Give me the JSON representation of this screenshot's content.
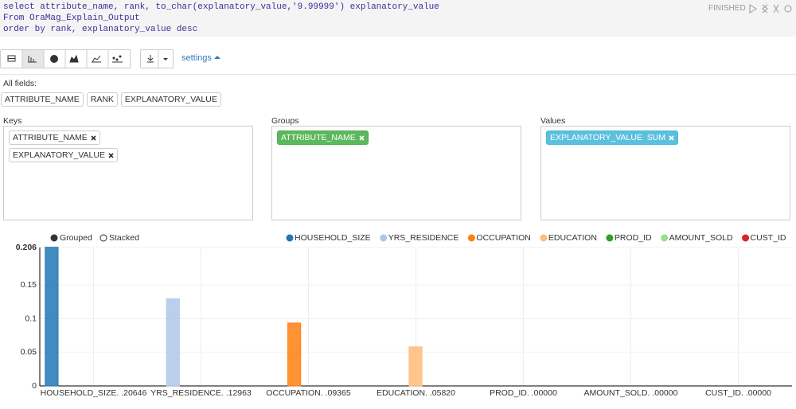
{
  "editor": {
    "lines": [
      "select attribute_name, rank, to_char(explanatory_value,'9.99999') explanatory_value",
      "From OraMag_Explain_Output",
      "order by rank, explanatory_value desc"
    ],
    "status": "FINISHED"
  },
  "toolbar": {
    "settings": "settings"
  },
  "fields": {
    "label": "All fields:",
    "items": [
      "ATTRIBUTE_NAME",
      "RANK",
      "EXPLANATORY_VALUE"
    ]
  },
  "keys": {
    "label": "Keys",
    "items": [
      "ATTRIBUTE_NAME",
      "EXPLANATORY_VALUE"
    ]
  },
  "groups": {
    "label": "Groups",
    "items": [
      "ATTRIBUTE_NAME"
    ]
  },
  "values": {
    "label": "Values",
    "items": [
      "EXPLANATORY_VALUE  SUM"
    ]
  },
  "chart_controls": {
    "grouped": "Grouped",
    "stacked": "Stacked"
  },
  "chart_data": {
    "type": "bar",
    "categories": [
      "HOUSEHOLD_SIZE. .20646",
      "YRS_RESIDENCE. .12963",
      "OCCUPATION. .09365",
      "EDUCATION. .05820",
      "PROD_ID. .00000",
      "AMOUNT_SOLD. .00000",
      "CUST_ID. .00000"
    ],
    "series": [
      {
        "name": "HOUSEHOLD_SIZE",
        "color": "#1f77b4",
        "values": [
          0.20646,
          0,
          0,
          0,
          0,
          0,
          0
        ]
      },
      {
        "name": "YRS_RESIDENCE",
        "color": "#aec7e8",
        "values": [
          0,
          0.12963,
          0,
          0,
          0,
          0,
          0
        ]
      },
      {
        "name": "OCCUPATION",
        "color": "#ff7f0e",
        "values": [
          0,
          0,
          0.09365,
          0,
          0,
          0,
          0
        ]
      },
      {
        "name": "EDUCATION",
        "color": "#ffbb78",
        "values": [
          0,
          0,
          0,
          0.0582,
          0,
          0,
          0
        ]
      },
      {
        "name": "PROD_ID",
        "color": "#2ca02c",
        "values": [
          0,
          0,
          0,
          0,
          0,
          0,
          0
        ]
      },
      {
        "name": "AMOUNT_SOLD",
        "color": "#98df8a",
        "values": [
          0,
          0,
          0,
          0,
          0,
          0,
          0
        ]
      },
      {
        "name": "CUST_ID",
        "color": "#d62728",
        "values": [
          0,
          0,
          0,
          0,
          0,
          0,
          0
        ]
      }
    ],
    "ylim": [
      0,
      0.206
    ],
    "yticks": [
      0,
      0.05,
      0.1,
      0.15,
      0.206
    ],
    "grid": true,
    "legend": "top-right"
  }
}
